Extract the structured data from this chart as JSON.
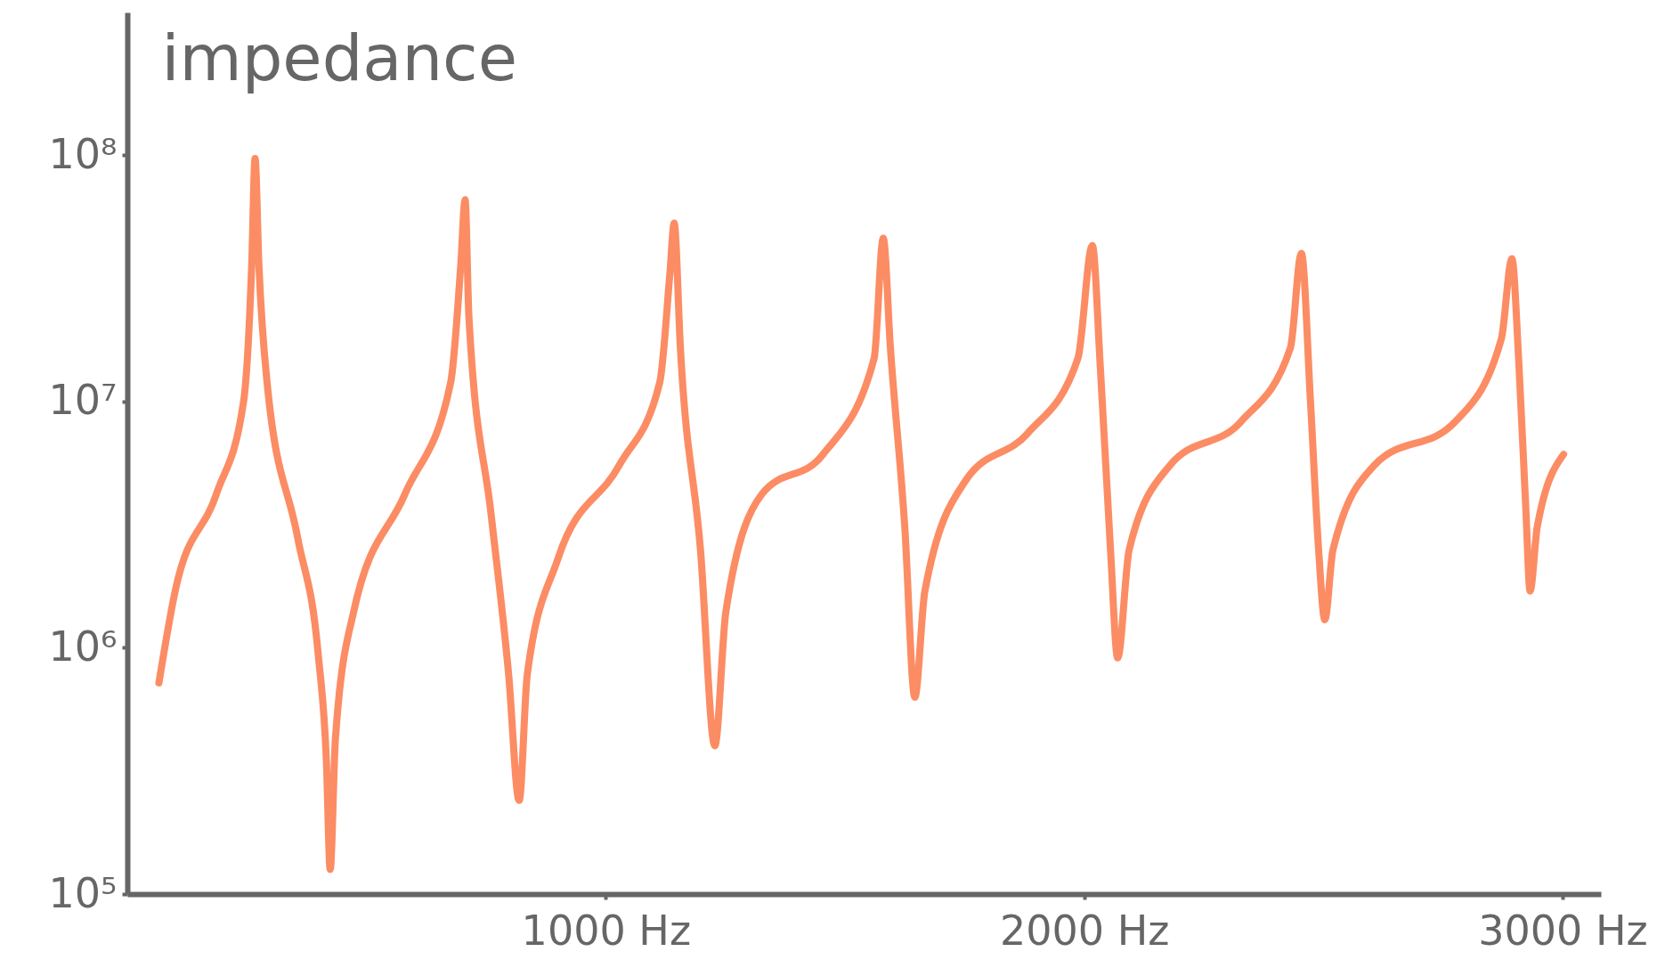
{
  "chart_data": {
    "type": "line",
    "ylabel": "impedance",
    "log": "y",
    "grid": false,
    "marker": "none",
    "line_style": "solid",
    "xlim": [
      0,
      3080
    ],
    "ylim": [
      100000,
      380000000
    ],
    "xticks": [
      {
        "value": 1000,
        "label": "1000 Hz"
      },
      {
        "value": 2000,
        "label": "2000 Hz"
      },
      {
        "value": 3000,
        "label": "3000 Hz"
      }
    ],
    "yticks": [
      {
        "value": 100000,
        "label": "10⁵"
      },
      {
        "value": 1000000,
        "label": "10⁶"
      },
      {
        "value": 10000000,
        "label": "10⁷"
      },
      {
        "value": 100000000,
        "label": "10⁸"
      }
    ],
    "x": [
      66,
      100,
      186,
      243,
      260,
      267,
      275,
      292,
      356,
      399,
      416,
      424,
      435,
      473,
      580,
      676,
      697,
      706,
      714,
      761,
      797,
      819,
      836,
      900,
      1028,
      1113,
      1134,
      1143,
      1156,
      1198,
      1228,
      1251,
      1326,
      1454,
      1561,
      1580,
      1595,
      1625,
      1646,
      1667,
      1753,
      1881,
      1987,
      2017,
      2034,
      2055,
      2070,
      2094,
      2179,
      2328,
      2431,
      2454,
      2473,
      2490,
      2503,
      2520,
      2606,
      2776,
      2872,
      2894,
      2908,
      2923,
      2932,
      2947,
      3002
    ],
    "series": [
      {
        "color": "#fc8c64",
        "values": [
          720000,
          1700000,
          4200000,
          10000000,
          36000000,
          97000000,
          36000000,
          12000000,
          2800000,
          940000,
          350000,
          126000,
          430000,
          1400000,
          4200000,
          12000000,
          36000000,
          66000000,
          22000000,
          3400000,
          780000,
          240000,
          780000,
          2300000,
          5500000,
          12000000,
          33000000,
          53000000,
          16500000,
          2500000,
          400000,
          1400000,
          4200000,
          6100000,
          15000000,
          46000000,
          16500000,
          3100000,
          630000,
          1700000,
          4800000,
          7400000,
          15000000,
          43000000,
          13500000,
          2500000,
          910000,
          2500000,
          5500000,
          8300000,
          16500000,
          40000000,
          10000000,
          2500000,
          1300000,
          2500000,
          5500000,
          8300000,
          18000000,
          38000000,
          15000000,
          3700000,
          1700000,
          3100000,
          6100000
        ]
      }
    ]
  }
}
